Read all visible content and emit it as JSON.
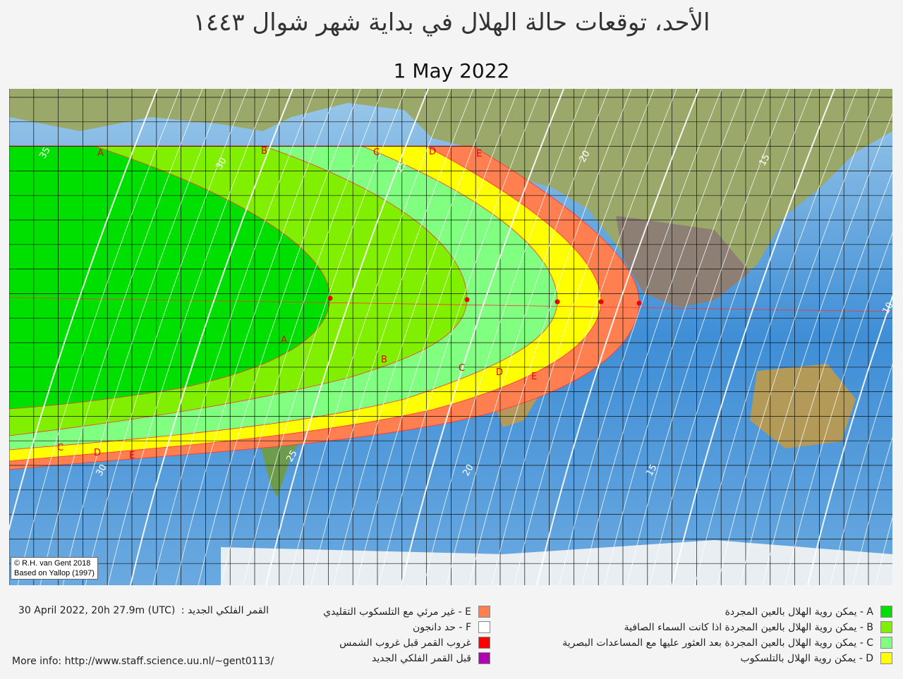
{
  "title": "الأحد، توقعات حالة الهلال في بداية شهر شوال ١٤٤٣",
  "date": "1 May 2022",
  "credit": [
    "© R.H. van Gent 2018",
    "Based on Yallop (1997)"
  ],
  "new_moon": {
    "label": "القمر الفلكي الجديد :",
    "value": "30 April 2022, 20h 27.9m (UTC)"
  },
  "more_info": "More info: http://www.staff.science.uu.nl/~gent0113/",
  "legend_left": [
    {
      "text": "E - غير مرئي مع التلسكوب التقليدي",
      "color": "#ff7f50"
    },
    {
      "text": "F - حد دانجون",
      "color": "#ffffff"
    },
    {
      "text": "غروب القمر قبل غروب الشمس",
      "color": "#ff0000"
    },
    {
      "text": "قبل القمر  الفلكي الجديد",
      "color": "#b000b0"
    }
  ],
  "legend_right": [
    {
      "text": "A - يمكن روية الهلال بالعين المجردة",
      "color": "#00e000"
    },
    {
      "text": "B - يمكن روية الهلال بالعين المجردة اذا كانت السماء الصافية",
      "color": "#80f000"
    },
    {
      "text": "C - يمكن روية الهلال بالعين المجردة بعد العثور عليها مع المساعدات البصرية",
      "color": "#80ff80"
    },
    {
      "text": "D - يمكن روية الهلال بالتلسكوب",
      "color": "#ffff00"
    }
  ],
  "zone_labels": [
    "A",
    "B",
    "C",
    "D",
    "E"
  ],
  "contour_labels": [
    "35",
    "30",
    "25",
    "20",
    "15",
    "10"
  ]
}
